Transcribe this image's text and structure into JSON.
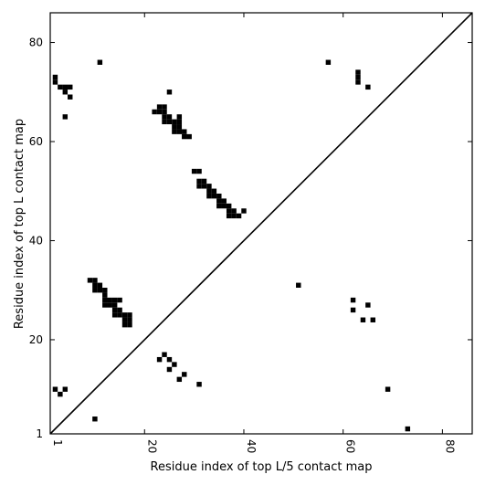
{
  "chart_data": {
    "type": "heatmap",
    "xlabel": "Residue index of top L/5 contact map",
    "ylabel": "Residue index of top L contact map",
    "xlim": [
      1,
      86
    ],
    "ylim": [
      1,
      86
    ],
    "xticks": [
      {
        "value": 1,
        "label": "1"
      },
      {
        "value": 20,
        "label": "20"
      },
      {
        "value": 40,
        "label": "40"
      },
      {
        "value": 60,
        "label": "60"
      },
      {
        "value": 80,
        "label": "80"
      }
    ],
    "yticks": [
      {
        "value": 1,
        "label": "1"
      },
      {
        "value": 20,
        "label": "20"
      },
      {
        "value": 40,
        "label": "40"
      },
      {
        "value": 60,
        "label": "60"
      },
      {
        "value": 80,
        "label": "80"
      }
    ],
    "diagonal": true,
    "grid": false,
    "cell_color": "#000000",
    "upper_left_contacts": [
      [
        2,
        72
      ],
      [
        2,
        73
      ],
      [
        3,
        71
      ],
      [
        4,
        71
      ],
      [
        4,
        70
      ],
      [
        5,
        71
      ],
      [
        5,
        69
      ],
      [
        4,
        65
      ],
      [
        11,
        76
      ],
      [
        22,
        66
      ],
      [
        23,
        66
      ],
      [
        23,
        67
      ],
      [
        24,
        66
      ],
      [
        24,
        67
      ],
      [
        24,
        65
      ],
      [
        24,
        64
      ],
      [
        25,
        64
      ],
      [
        25,
        65
      ],
      [
        25,
        70
      ],
      [
        26,
        64
      ],
      [
        26,
        63
      ],
      [
        26,
        62
      ],
      [
        27,
        62
      ],
      [
        27,
        63
      ],
      [
        27,
        64
      ],
      [
        27,
        65
      ],
      [
        28,
        62
      ],
      [
        28,
        61
      ],
      [
        29,
        61
      ],
      [
        30,
        54
      ],
      [
        31,
        54
      ],
      [
        31,
        52
      ],
      [
        31,
        51
      ],
      [
        32,
        52
      ],
      [
        32,
        51
      ],
      [
        33,
        51
      ],
      [
        33,
        50
      ],
      [
        33,
        49
      ],
      [
        34,
        49
      ],
      [
        34,
        50
      ],
      [
        35,
        49
      ],
      [
        35,
        48
      ],
      [
        35,
        47
      ],
      [
        36,
        48
      ],
      [
        36,
        47
      ],
      [
        37,
        47
      ],
      [
        37,
        46
      ],
      [
        37,
        45
      ],
      [
        38,
        46
      ],
      [
        38,
        45
      ],
      [
        39,
        45
      ],
      [
        40,
        46
      ],
      [
        57,
        76
      ],
      [
        63,
        74
      ],
      [
        63,
        73
      ],
      [
        63,
        72
      ],
      [
        65,
        71
      ],
      [
        9,
        32
      ],
      [
        10,
        32
      ],
      [
        10,
        31
      ],
      [
        10,
        30
      ],
      [
        11,
        31
      ],
      [
        11,
        30
      ],
      [
        12,
        30
      ],
      [
        12,
        29
      ],
      [
        12,
        28
      ],
      [
        12,
        27
      ],
      [
        13,
        28
      ],
      [
        13,
        27
      ],
      [
        14,
        28
      ],
      [
        14,
        27
      ],
      [
        14,
        26
      ],
      [
        14,
        25
      ],
      [
        15,
        28
      ],
      [
        15,
        26
      ],
      [
        15,
        25
      ],
      [
        16,
        25
      ],
      [
        16,
        24
      ],
      [
        16,
        23
      ],
      [
        17,
        25
      ],
      [
        17,
        24
      ],
      [
        17,
        23
      ]
    ],
    "lower_right_contacts": [
      [
        2,
        10
      ],
      [
        3,
        9
      ],
      [
        4,
        10
      ],
      [
        10,
        4
      ],
      [
        23,
        16
      ],
      [
        24,
        17
      ],
      [
        25,
        16
      ],
      [
        25,
        14
      ],
      [
        26,
        15
      ],
      [
        27,
        12
      ],
      [
        28,
        13
      ],
      [
        31,
        11
      ],
      [
        51,
        31
      ],
      [
        62,
        28
      ],
      [
        62,
        26
      ],
      [
        64,
        24
      ],
      [
        65,
        27
      ],
      [
        66,
        24
      ],
      [
        69,
        10
      ],
      [
        73,
        2
      ]
    ]
  }
}
